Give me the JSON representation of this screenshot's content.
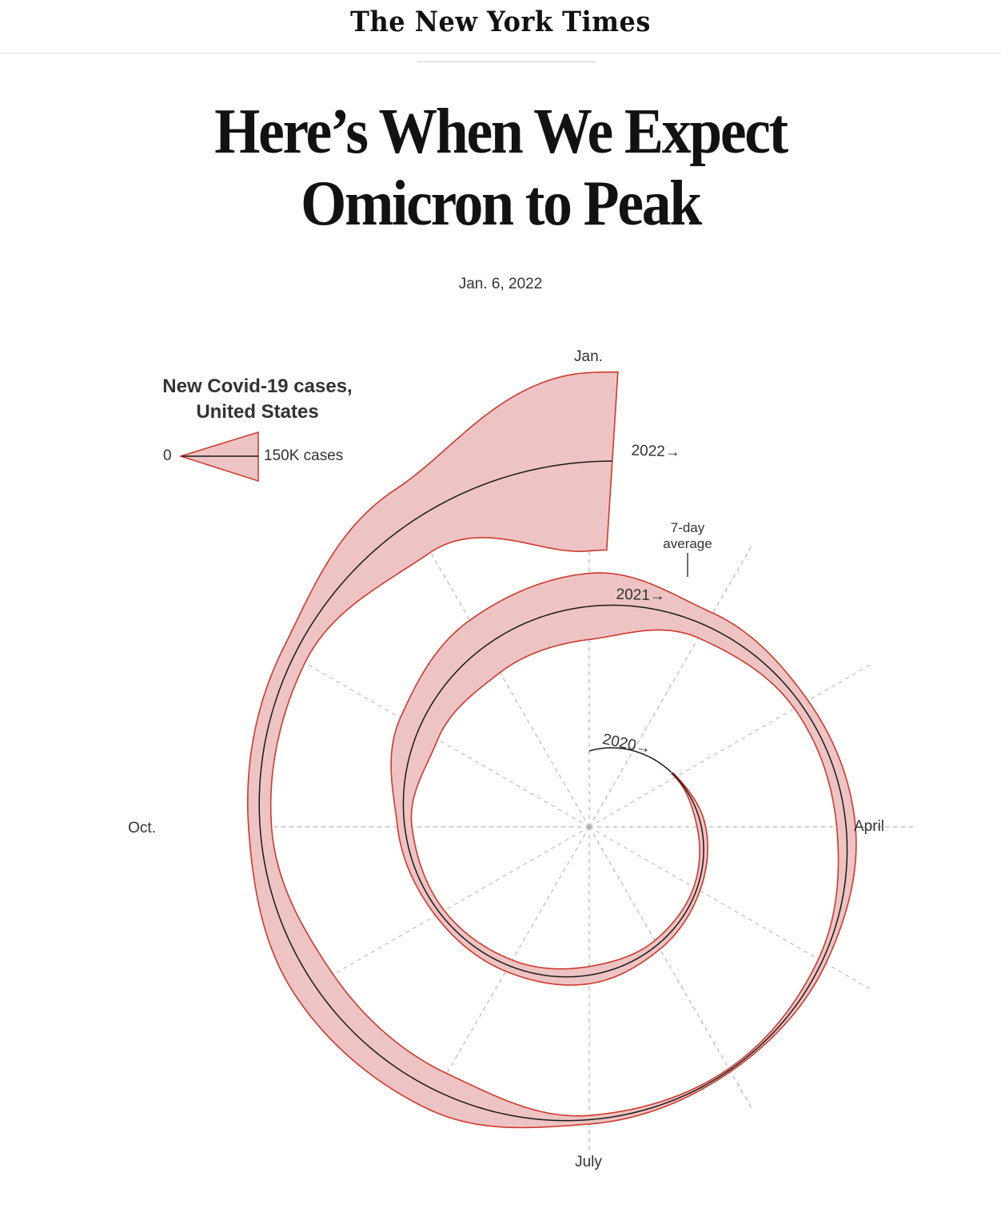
{
  "masthead": {
    "logo_text": "The New York Times"
  },
  "article": {
    "headline": "Here’s When We Expect Omicron to Peak",
    "date": "Jan. 6, 2022"
  },
  "colors": {
    "band_fill": "#eec3c3",
    "band_stroke": "#cc3a2e",
    "average_line": "#1a1a1a",
    "guide": "#aaaaaa"
  },
  "chart_data": {
    "type": "area",
    "title": "New Covid-19 cases, United States",
    "legend": {
      "zero_label": "0",
      "max_label": "150K cases",
      "max_value": 150000
    },
    "annotation": "7-day average",
    "month_labels": [
      "Jan.",
      "April",
      "July",
      "Oct."
    ],
    "series": [
      {
        "name": "2020→",
        "points": [
          [
            1,
            0
          ],
          [
            2,
            0
          ],
          [
            3,
            5000
          ],
          [
            4,
            30000
          ],
          [
            5,
            25000
          ],
          [
            6,
            35000
          ],
          [
            7,
            60000
          ],
          [
            8,
            45000
          ],
          [
            9,
            35000
          ],
          [
            10,
            50000
          ],
          [
            11,
            150000
          ],
          [
            12,
            210000
          ]
        ]
      },
      {
        "name": "2021→",
        "points": [
          [
            1,
            230000
          ],
          [
            2,
            100000
          ],
          [
            3,
            55000
          ],
          [
            4,
            65000
          ],
          [
            5,
            30000
          ],
          [
            6,
            12000
          ],
          [
            7,
            30000
          ],
          [
            8,
            140000
          ],
          [
            9,
            150000
          ],
          [
            10,
            80000
          ],
          [
            11,
            90000
          ],
          [
            12,
            250000
          ]
        ]
      },
      {
        "name": "2022→",
        "points": [
          [
            1,
            620000
          ]
        ]
      }
    ]
  }
}
